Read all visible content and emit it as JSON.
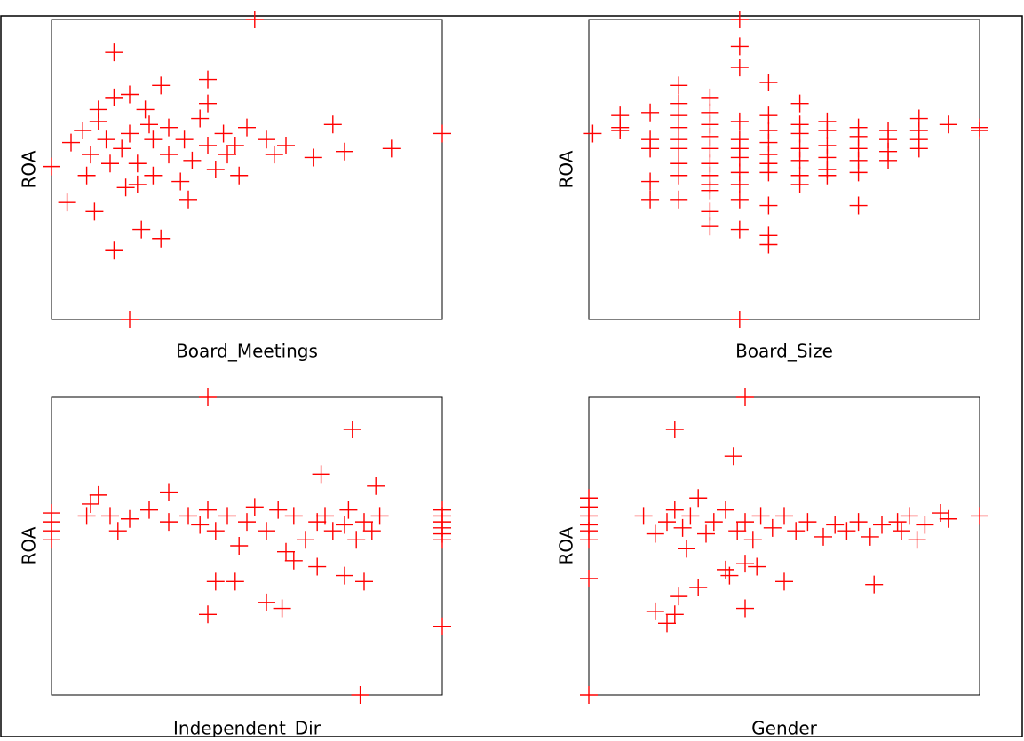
{
  "chart_data": [
    {
      "type": "scatter",
      "x_label": "Board_Meetings",
      "y_label": "ROA",
      "color": "#ff0000",
      "xlim": [
        0,
        100
      ],
      "ylim": [
        0,
        100
      ],
      "x": [
        52,
        16,
        20,
        16,
        28,
        23,
        4,
        11,
        40,
        40,
        40,
        72,
        75,
        87,
        100,
        67,
        48,
        47,
        35,
        22,
        30,
        14,
        18,
        20,
        25,
        12,
        8,
        5,
        10,
        15,
        22,
        26,
        30,
        34,
        36,
        24,
        20,
        16,
        28,
        44,
        50,
        55,
        60,
        57,
        0,
        9,
        19,
        33,
        42,
        26,
        12,
        38,
        45
      ],
      "values": [
        100,
        89,
        0,
        23,
        27,
        30,
        39,
        36,
        80,
        72,
        58,
        65,
        56,
        57,
        62,
        54,
        48,
        58,
        40,
        45,
        55,
        60,
        57,
        62,
        65,
        66,
        63,
        59,
        55,
        52,
        52,
        60,
        64,
        60,
        53,
        70,
        75,
        74,
        78,
        62,
        64,
        60,
        58,
        55,
        51,
        48,
        44,
        46,
        50,
        48,
        70,
        67,
        55
      ]
    },
    {
      "type": "scatter",
      "x_label": "Board_Size",
      "y_label": "ROA",
      "color": "#ff0000",
      "xlim": [
        0,
        100
      ],
      "ylim": [
        0,
        100
      ],
      "x": [
        1,
        8,
        8,
        8,
        15.7,
        15.7,
        15.7,
        15.7,
        15.7,
        23,
        23,
        23,
        23,
        23,
        23,
        23,
        23,
        23,
        31,
        31,
        31,
        31,
        31,
        31,
        31,
        31,
        31,
        31,
        31,
        38.6,
        38.6,
        38.6,
        38.6,
        38.6,
        38.6,
        38.6,
        38.6,
        38.6,
        38.6,
        38.6,
        38.6,
        46,
        46,
        46,
        46,
        46,
        46,
        46,
        46,
        46,
        46,
        54,
        54,
        54,
        54,
        54,
        54,
        54,
        61,
        61,
        61,
        61,
        61,
        61,
        69,
        69,
        69,
        69,
        69,
        69,
        76.6,
        76.6,
        76.6,
        76.6,
        84.5,
        84.5,
        84.5,
        84.5,
        92,
        100,
        100
      ],
      "values": [
        62,
        68,
        64,
        63,
        69,
        60,
        57,
        46,
        40,
        78,
        72,
        68,
        64,
        60,
        57,
        52,
        48,
        40,
        74,
        69,
        65,
        61,
        57,
        52,
        48,
        45,
        43,
        36,
        31,
        100,
        91,
        84,
        66,
        60,
        57,
        54,
        49,
        45,
        40,
        30,
        0,
        79,
        68,
        63,
        59,
        55,
        52,
        49,
        38,
        28,
        25,
        72,
        65,
        62,
        57,
        53,
        48,
        45,
        66,
        63,
        58,
        54,
        50,
        48,
        64,
        61,
        57,
        53,
        49,
        38,
        63,
        60,
        56,
        53,
        67,
        63,
        60,
        57,
        65,
        64,
        63
      ]
    },
    {
      "type": "scatter",
      "x_label": "Independent_Dir",
      "y_label": "ROA",
      "color": "#ff0000",
      "xlim": [
        0,
        100
      ],
      "ylim": [
        0,
        100
      ],
      "x": [
        40,
        79,
        100,
        100,
        100,
        100,
        100,
        100,
        100,
        0,
        0,
        0,
        0,
        9,
        10,
        12,
        15,
        17,
        20,
        25,
        30,
        30,
        35,
        38,
        40,
        42,
        45,
        48,
        50,
        52,
        55,
        58,
        60,
        62,
        65,
        68,
        70,
        72,
        75,
        77,
        76,
        78,
        80,
        82,
        84,
        83,
        69,
        40,
        55,
        59,
        42,
        47,
        75,
        80,
        68,
        62
      ],
      "values": [
        100,
        0,
        23,
        56,
        58,
        60,
        62,
        54,
        52,
        52,
        55,
        58,
        61,
        60,
        64,
        67,
        60,
        55,
        59,
        62,
        68,
        58,
        60,
        57,
        62,
        55,
        60,
        50,
        58,
        63,
        55,
        62,
        48,
        60,
        52,
        58,
        60,
        55,
        57,
        89,
        62,
        52,
        58,
        55,
        60,
        70,
        74,
        27,
        31,
        29,
        38,
        38,
        40,
        38,
        43,
        45
      ]
    },
    {
      "type": "scatter",
      "x_label": "Gender",
      "y_label": "ROA",
      "color": "#ff0000",
      "xlim": [
        0,
        100
      ],
      "ylim": [
        0,
        100
      ],
      "x": [
        40,
        0,
        0,
        0,
        0,
        0,
        0,
        0,
        100,
        73,
        40,
        22,
        37,
        0,
        23,
        22,
        20,
        17,
        14,
        17,
        20,
        22,
        24,
        26,
        28,
        30,
        32,
        35,
        38,
        40,
        42,
        44,
        47,
        50,
        53,
        56,
        60,
        63,
        66,
        69,
        72,
        75,
        80,
        82,
        86,
        90,
        92,
        25,
        35,
        43,
        50,
        28,
        40,
        36,
        79,
        84
      ],
      "values": [
        100,
        0,
        52,
        55,
        57,
        60,
        63,
        66,
        60,
        37,
        29,
        89,
        80,
        39,
        33,
        27,
        24,
        28,
        60,
        54,
        58,
        62,
        56,
        60,
        66,
        54,
        58,
        62,
        55,
        58,
        52,
        60,
        56,
        60,
        55,
        58,
        53,
        57,
        55,
        58,
        53,
        57,
        55,
        60,
        57,
        61,
        59,
        49,
        42,
        43,
        38,
        36,
        44,
        40,
        58,
        52
      ]
    }
  ]
}
